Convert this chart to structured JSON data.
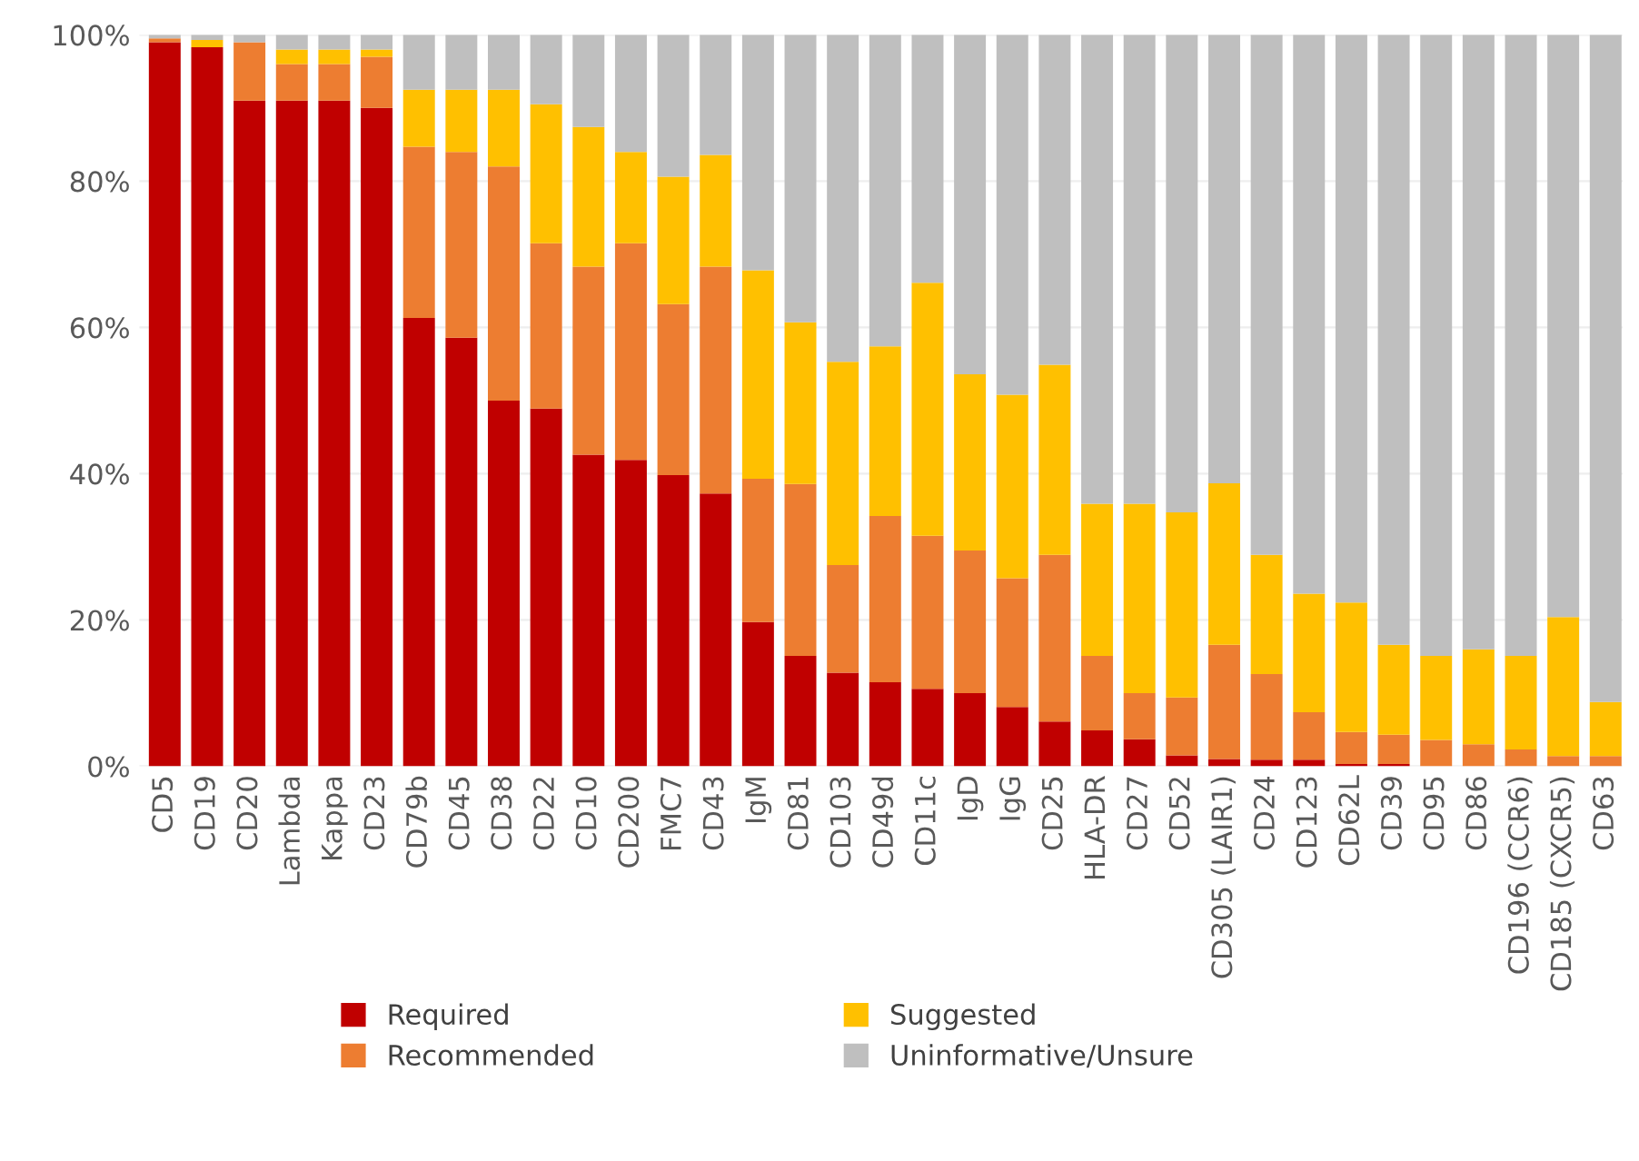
{
  "chart_data": {
    "type": "bar",
    "stacked": true,
    "categories": [
      "CD5",
      "CD19",
      "CD20",
      "Lambda",
      "Kappa",
      "CD23",
      "CD79b",
      "CD45",
      "CD38",
      "CD22",
      "CD10",
      "CD200",
      "FMC7",
      "CD43",
      "IgM",
      "CD81",
      "CD103",
      "CD49d",
      "CD11c",
      "IgD",
      "IgG",
      "CD25",
      "HLA-DR",
      "CD27",
      "CD52",
      "CD305 (LAIR1)",
      "CD24",
      "CD123",
      "CD62L",
      "CD39",
      "CD95",
      "CD86",
      "CD196 (CCR6)",
      "CD185 (CXCR5)",
      "CD63"
    ],
    "series": [
      {
        "name": "Required",
        "color": "#c00000",
        "values": [
          99,
          98.3,
          91,
          91,
          91,
          90,
          61.3,
          58.6,
          50,
          48.9,
          42.6,
          41.9,
          39.8,
          37.3,
          19.7,
          15.1,
          12.8,
          11.5,
          10.6,
          10,
          8.1,
          6.1,
          4.9,
          3.7,
          1.5,
          1,
          0.9,
          0.9,
          0.3,
          0.3,
          0,
          0,
          0,
          0,
          0
        ]
      },
      {
        "name": "Recommended",
        "color": "#ed7d31",
        "values": [
          0.5,
          0,
          8,
          5,
          5,
          7,
          23.4,
          25.4,
          32,
          22.6,
          25.7,
          29.6,
          23.4,
          31,
          19.6,
          23.5,
          14.7,
          22.7,
          20.9,
          19.5,
          17.6,
          22.8,
          10.2,
          6.3,
          7.9,
          15.6,
          11.7,
          6.5,
          4.4,
          4,
          3.6,
          3,
          2.3,
          1.4,
          1.4
        ]
      },
      {
        "name": "Suggested",
        "color": "#ffc000",
        "values": [
          0,
          1,
          0,
          2,
          2,
          1,
          7.8,
          8.5,
          10.5,
          19,
          19.1,
          12.5,
          17.4,
          15.3,
          28.5,
          22.1,
          27.8,
          23.2,
          34.6,
          24.1,
          25.1,
          26,
          20.8,
          25.9,
          25.3,
          22.1,
          16.3,
          16.2,
          17.7,
          12.3,
          11.5,
          13,
          12.8,
          19,
          7.4
        ]
      },
      {
        "name": "Uninformative/Unsure",
        "color": "#bfbfbf",
        "values": [
          0.5,
          0.7,
          1,
          2,
          2,
          2,
          7.5,
          7.5,
          7.5,
          9.5,
          12.6,
          16,
          19.4,
          16.4,
          32.2,
          39.3,
          44.7,
          42.6,
          33.9,
          46.4,
          49.2,
          45.1,
          64.1,
          64.1,
          65.3,
          61.3,
          71.1,
          76.4,
          77.6,
          83.4,
          84.9,
          84,
          84.9,
          79.6,
          91.2
        ]
      }
    ],
    "ylim": [
      0,
      100
    ],
    "yticks": [
      {
        "value": 0,
        "label": "0%"
      },
      {
        "value": 20,
        "label": "20%"
      },
      {
        "value": 40,
        "label": "40%"
      },
      {
        "value": 60,
        "label": "60%"
      },
      {
        "value": 80,
        "label": "80%"
      },
      {
        "value": 100,
        "label": "100%"
      }
    ],
    "grid": "y",
    "legend": "bottom"
  }
}
